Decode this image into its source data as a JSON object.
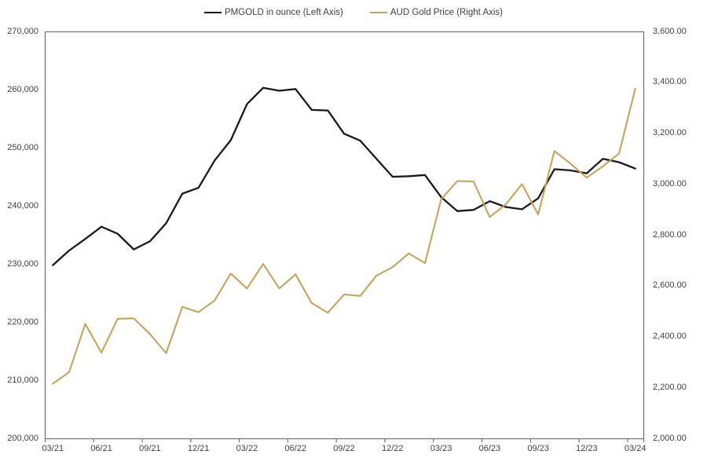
{
  "legend": {
    "items": [
      {
        "label": "PMGOLD in ounce (Left Axis)",
        "color": "#1a1a1a"
      },
      {
        "label": "AUD Gold Price (Right Axis)",
        "color": "#c8a45a"
      }
    ]
  },
  "chart_data": {
    "type": "line",
    "x_frequency": "monthly",
    "n_points": 37,
    "x_tick_labels": [
      "03/21",
      "06/21",
      "09/21",
      "12/21",
      "03/22",
      "06/22",
      "09/22",
      "12/22",
      "03/23",
      "06/23",
      "09/23",
      "12/23",
      "03/24"
    ],
    "left_axis": {
      "min": 200000,
      "max": 270000,
      "step": 10000,
      "tick_labels": [
        "270,000",
        "260,000",
        "250,000",
        "240,000",
        "230,000",
        "220,000",
        "210,000",
        "200,000"
      ]
    },
    "right_axis": {
      "min": 2000,
      "max": 3600,
      "step": 200,
      "tick_labels": [
        "3,600.00",
        "3,400.00",
        "3,200.00",
        "3,000.00",
        "2,800.00",
        "2,600.00",
        "2,400.00",
        "2,200.00",
        "2,000.00"
      ]
    },
    "grid": false,
    "legend_position": "top",
    "series": [
      {
        "name": "PMGOLD in ounce (Left Axis)",
        "axis": "left",
        "color": "#1a1a1a",
        "stroke_width": 2.3,
        "values": [
          229800,
          232300,
          234300,
          236400,
          235200,
          232500,
          233900,
          237000,
          242100,
          243100,
          247800,
          251300,
          257500,
          260300,
          259800,
          260100,
          256500,
          256400,
          252400,
          251200,
          248100,
          245000,
          245100,
          245300,
          241500,
          239100,
          239300,
          240800,
          239800,
          239400,
          241300,
          246300,
          246100,
          245600,
          248100,
          247500,
          246400
        ]
      },
      {
        "name": "AUD Gold Price (Right Axis)",
        "axis": "right",
        "color": "#c8a45a",
        "stroke_width": 2.1,
        "values": [
          2215,
          2260,
          2450,
          2337,
          2470,
          2472,
          2410,
          2335,
          2517,
          2496,
          2542,
          2648,
          2589,
          2686,
          2589,
          2645,
          2532,
          2494,
          2566,
          2560,
          2640,
          2673,
          2727,
          2689,
          2940,
          3012,
          3010,
          2870,
          2920,
          3000,
          2880,
          3130,
          3080,
          3025,
          3070,
          3120,
          3375
        ]
      }
    ],
    "axis_color": "#707070",
    "label_color": "#404040"
  }
}
